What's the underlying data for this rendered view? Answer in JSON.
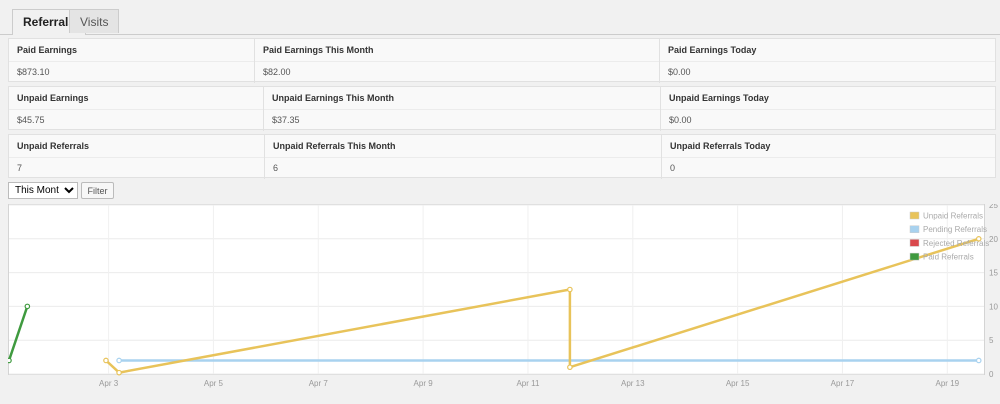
{
  "tabs": [
    {
      "label": "Referrals",
      "active": true
    },
    {
      "label": "Visits",
      "active": false
    }
  ],
  "stats": [
    [
      {
        "label": "Paid Earnings",
        "value": "$873.10"
      },
      {
        "label": "Paid Earnings This Month",
        "value": "$82.00"
      },
      {
        "label": "Paid Earnings Today",
        "value": "$0.00"
      }
    ],
    [
      {
        "label": "Unpaid Earnings",
        "value": "$45.75"
      },
      {
        "label": "Unpaid Earnings This Month",
        "value": "$37.35"
      },
      {
        "label": "Unpaid Earnings Today",
        "value": "$0.00"
      }
    ],
    [
      {
        "label": "Unpaid Referrals",
        "value": "7"
      },
      {
        "label": "Unpaid Referrals This Month",
        "value": "6"
      },
      {
        "label": "Unpaid Referrals Today",
        "value": "0"
      }
    ]
  ],
  "filter": {
    "selected": "This Month",
    "button_label": "Filter"
  },
  "colors": {
    "unpaid": "#e8c35a",
    "pending": "#a8d2ef",
    "rejected": "#d9484c",
    "paid": "#3f9a3f"
  },
  "chart_data": {
    "type": "line",
    "x_ticks": [
      "Apr 3",
      "Apr 5",
      "Apr 7",
      "Apr 9",
      "Apr 11",
      "Apr 13",
      "Apr 15",
      "Apr 17",
      "Apr 19"
    ],
    "x_tick_days": [
      3,
      5,
      7,
      9,
      11,
      13,
      15,
      17,
      19
    ],
    "xlim_days": [
      1.1,
      19.7
    ],
    "y_ticks": [
      0,
      5,
      10,
      15,
      20,
      25
    ],
    "ylim": [
      0,
      25
    ],
    "legend_position": "top-right",
    "grid": true,
    "series": [
      {
        "name": "Unpaid Referrals",
        "color_key": "unpaid",
        "points": [
          [
            2.95,
            2
          ],
          [
            3.2,
            0.2
          ],
          [
            11.8,
            12.5
          ],
          [
            11.8,
            1
          ],
          [
            19.6,
            20
          ]
        ]
      },
      {
        "name": "Pending Referrals",
        "color_key": "pending",
        "points": [
          [
            3.2,
            2
          ],
          [
            19.6,
            2
          ]
        ]
      },
      {
        "name": "Rejected Referrals",
        "color_key": "rejected",
        "points": []
      },
      {
        "name": "Paid Referrals",
        "color_key": "paid",
        "points": [
          [
            1.1,
            2
          ],
          [
            1.45,
            10
          ]
        ]
      }
    ]
  }
}
